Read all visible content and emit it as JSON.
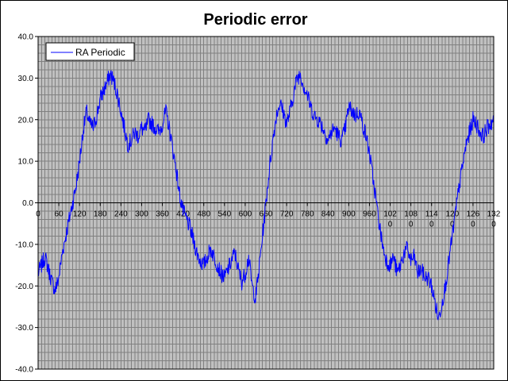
{
  "chart_data": {
    "type": "line",
    "title": "Periodic error",
    "xlabel": "",
    "ylabel": "",
    "xlim": [
      0,
      1320
    ],
    "ylim": [
      -40,
      40
    ],
    "x_ticks": [
      0,
      60,
      120,
      180,
      240,
      300,
      360,
      420,
      480,
      540,
      600,
      660,
      720,
      780,
      840,
      900,
      960,
      1020,
      1080,
      1140,
      1200,
      1260,
      1320
    ],
    "y_ticks": [
      "40.0",
      "30.0",
      "20.0",
      "10.0",
      "0.0",
      "-10.0",
      "-20.0",
      "-30.0",
      "-40.0"
    ],
    "grid": true,
    "legend_position": "top-left",
    "colors": {
      "plot_background": "#c0c0c0",
      "grid": "#808080",
      "line": "#0000ff"
    },
    "series": [
      {
        "name": "RA Periodic",
        "x": [
          0,
          10,
          20,
          30,
          40,
          50,
          60,
          70,
          80,
          90,
          100,
          110,
          120,
          130,
          140,
          150,
          160,
          170,
          180,
          190,
          200,
          210,
          220,
          230,
          240,
          250,
          260,
          270,
          280,
          290,
          300,
          310,
          320,
          330,
          340,
          350,
          360,
          370,
          380,
          390,
          400,
          410,
          420,
          430,
          440,
          450,
          460,
          470,
          480,
          490,
          500,
          510,
          520,
          530,
          540,
          550,
          560,
          570,
          580,
          590,
          600,
          610,
          620,
          630,
          640,
          650,
          660,
          670,
          680,
          690,
          700,
          710,
          720,
          730,
          740,
          750,
          760,
          770,
          780,
          790,
          800,
          810,
          820,
          830,
          840,
          850,
          860,
          870,
          880,
          890,
          900,
          910,
          920,
          930,
          940,
          950,
          960,
          970,
          980,
          990,
          1000,
          1010,
          1020,
          1030,
          1040,
          1050,
          1060,
          1070,
          1080,
          1090,
          1100,
          1110,
          1120,
          1130,
          1140,
          1150,
          1160,
          1170,
          1180,
          1190,
          1200,
          1210,
          1220,
          1230,
          1240,
          1250,
          1260,
          1270,
          1280,
          1290,
          1300,
          1310,
          1320
        ],
        "values": [
          -17,
          -15,
          -13,
          -16,
          -19,
          -21,
          -18,
          -12,
          -8,
          -4,
          0,
          4,
          10,
          17,
          22,
          19,
          18,
          21,
          25,
          27,
          29,
          31,
          29,
          26,
          22,
          18,
          14,
          15,
          17,
          16,
          18,
          17,
          20,
          19,
          18,
          17,
          19,
          22,
          18,
          13,
          8,
          2,
          -2,
          -4,
          -6,
          -9,
          -12,
          -14,
          -15,
          -13,
          -11,
          -13,
          -15,
          -17,
          -18,
          -16,
          -14,
          -12,
          -16,
          -19,
          -17,
          -13,
          -20,
          -23,
          -16,
          -8,
          0,
          8,
          15,
          21,
          24,
          22,
          19,
          22,
          26,
          30,
          31,
          28,
          26,
          23,
          21,
          20,
          19,
          17,
          15,
          17,
          18,
          16,
          15,
          18,
          23,
          22,
          21,
          22,
          19,
          16,
          12,
          6,
          0,
          -6,
          -11,
          -14,
          -15,
          -13,
          -17,
          -15,
          -12,
          -11,
          -14,
          -13,
          -17,
          -16,
          -18,
          -18,
          -20,
          -24,
          -28,
          -24,
          -20,
          -14,
          -8,
          -2,
          4,
          9,
          14,
          17,
          20,
          19,
          17,
          16,
          18,
          19,
          20
        ]
      }
    ]
  },
  "legend": {
    "label": "RA Periodic"
  }
}
